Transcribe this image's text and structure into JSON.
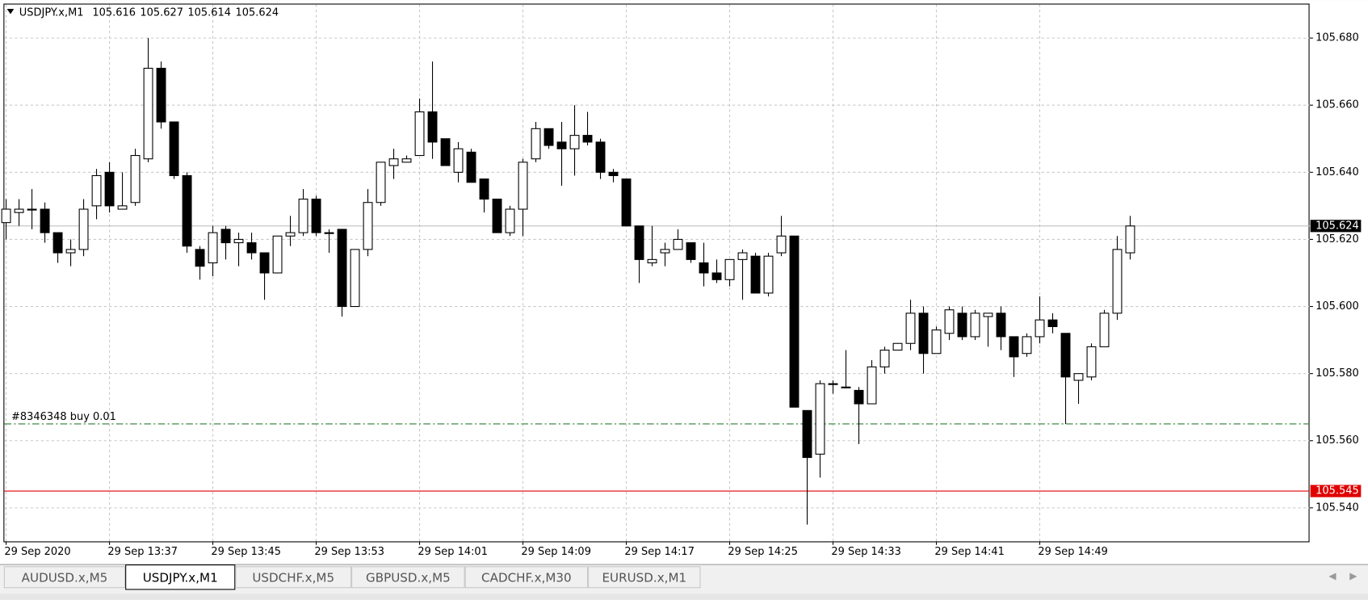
{
  "chart_data": {
    "type": "candlestick",
    "title": "USDJPY.x,M1",
    "categories": [
      "29 Sep 2020",
      null,
      null,
      null,
      null,
      null,
      null,
      null,
      "29 Sep 13:37",
      null,
      null,
      null,
      null,
      null,
      null,
      null,
      "29 Sep 13:45",
      null,
      null,
      null,
      null,
      null,
      null,
      null,
      "29 Sep 13:53",
      null,
      null,
      null,
      null,
      null,
      null,
      null,
      "29 Sep 14:01",
      null,
      null,
      null,
      null,
      null,
      null,
      null,
      "29 Sep 14:09",
      null,
      null,
      null,
      null,
      null,
      null,
      null,
      "29 Sep 14:17",
      null,
      null,
      null,
      null,
      null,
      null,
      null,
      "29 Sep 14:25",
      null,
      null,
      null,
      null,
      null,
      null,
      null,
      "29 Sep 14:33",
      null,
      null,
      null,
      null,
      null,
      null,
      null,
      "29 Sep 14:41",
      null,
      null,
      null,
      null,
      null,
      null,
      null,
      "29 Sep 14:49",
      null,
      null,
      null,
      null,
      null,
      null,
      null
    ],
    "open": [
      105.625,
      105.628,
      105.629,
      105.629,
      105.622,
      105.616,
      105.617,
      105.63,
      105.64,
      105.629,
      105.631,
      105.644,
      105.671,
      105.655,
      105.639,
      105.617,
      105.613,
      105.623,
      105.619,
      105.619,
      105.616,
      105.61,
      105.621,
      105.622,
      105.632,
      105.622,
      105.623,
      105.6,
      105.617,
      105.631,
      105.642,
      105.643,
      105.645,
      105.658,
      105.65,
      105.64,
      105.646,
      105.638,
      105.632,
      105.622,
      105.629,
      105.644,
      105.653,
      105.649,
      105.647,
      105.651,
      105.649,
      105.64,
      105.638,
      105.624,
      105.613,
      105.616,
      105.617,
      105.619,
      105.613,
      105.61,
      105.608,
      105.614,
      105.615,
      105.604,
      105.616,
      105.621,
      105.569,
      105.556,
      105.577,
      105.576,
      105.575,
      105.571,
      105.582,
      105.587,
      105.589,
      105.598,
      105.586,
      105.592,
      105.598,
      105.591,
      105.597,
      105.598,
      105.591,
      105.586,
      105.591,
      105.596,
      105.592,
      105.578,
      105.579,
      105.588,
      105.598,
      105.616
    ],
    "high": [
      105.632,
      105.632,
      105.635,
      105.631,
      105.622,
      105.62,
      105.632,
      105.641,
      105.643,
      105.64,
      105.647,
      105.68,
      105.673,
      105.655,
      105.64,
      105.618,
      105.624,
      105.624,
      105.622,
      105.622,
      105.616,
      105.621,
      105.627,
      105.635,
      105.633,
      105.623,
      105.623,
      105.617,
      105.635,
      105.643,
      105.647,
      105.645,
      105.662,
      105.673,
      105.65,
      105.649,
      105.647,
      105.638,
      105.632,
      105.63,
      105.644,
      105.655,
      105.653,
      105.655,
      105.66,
      105.658,
      105.65,
      105.641,
      105.638,
      105.624,
      105.624,
      105.619,
      105.623,
      105.619,
      105.619,
      105.614,
      105.614,
      105.617,
      105.616,
      105.616,
      105.627,
      105.621,
      105.569,
      105.578,
      105.578,
      105.587,
      105.576,
      105.584,
      105.588,
      105.589,
      105.602,
      105.6,
      105.594,
      105.6,
      105.6,
      105.599,
      105.598,
      105.6,
      105.591,
      105.592,
      105.603,
      105.598,
      105.592,
      105.58,
      105.589,
      105.599,
      105.621,
      105.627
    ],
    "low": [
      105.62,
      105.624,
      105.623,
      105.619,
      105.613,
      105.612,
      105.615,
      105.626,
      105.628,
      105.629,
      105.63,
      105.643,
      105.653,
      105.638,
      105.616,
      105.608,
      105.609,
      105.614,
      105.612,
      105.614,
      105.602,
      105.61,
      105.618,
      105.621,
      105.621,
      105.616,
      105.597,
      105.6,
      105.615,
      105.63,
      105.638,
      105.643,
      105.645,
      105.644,
      105.642,
      105.637,
      105.637,
      105.628,
      105.622,
      105.621,
      105.621,
      105.643,
      105.647,
      105.636,
      105.639,
      105.648,
      105.638,
      105.637,
      105.624,
      105.607,
      105.612,
      105.612,
      105.617,
      105.613,
      105.606,
      105.607,
      105.606,
      105.602,
      105.604,
      105.603,
      105.615,
      105.57,
      105.535,
      105.549,
      105.574,
      105.576,
      105.559,
      105.571,
      105.58,
      105.587,
      105.587,
      105.58,
      105.586,
      105.59,
      105.59,
      105.59,
      105.588,
      105.587,
      105.579,
      105.585,
      105.589,
      105.592,
      105.565,
      105.571,
      105.578,
      105.588,
      105.596,
      105.614
    ],
    "close": [
      105.629,
      105.629,
      105.629,
      105.622,
      105.616,
      105.617,
      105.629,
      105.639,
      105.63,
      105.63,
      105.645,
      105.671,
      105.655,
      105.639,
      105.618,
      105.612,
      105.622,
      105.619,
      105.62,
      105.616,
      105.61,
      105.621,
      105.622,
      105.632,
      105.622,
      105.622,
      105.6,
      105.617,
      105.631,
      105.643,
      105.644,
      105.644,
      105.658,
      105.649,
      105.642,
      105.647,
      105.637,
      105.632,
      105.622,
      105.629,
      105.643,
      105.653,
      105.648,
      105.647,
      105.651,
      105.649,
      105.64,
      105.639,
      105.624,
      105.614,
      105.614,
      105.617,
      105.62,
      105.614,
      105.61,
      105.608,
      105.614,
      105.616,
      105.604,
      105.615,
      105.621,
      105.57,
      105.555,
      105.577,
      105.577,
      105.576,
      105.571,
      105.582,
      105.587,
      105.589,
      105.598,
      105.586,
      105.593,
      105.599,
      105.591,
      105.598,
      105.598,
      105.591,
      105.585,
      105.591,
      105.596,
      105.594,
      105.579,
      105.58,
      105.588,
      105.598,
      105.617,
      105.624
    ],
    "ylim": [
      105.53,
      105.69
    ],
    "yticks": [
      {
        "value": 105.54,
        "label": "105.540"
      },
      {
        "value": 105.56,
        "label": "105.560"
      },
      {
        "value": 105.58,
        "label": "105.580"
      },
      {
        "value": 105.6,
        "label": "105.600"
      },
      {
        "value": 105.62,
        "label": "105.620"
      },
      {
        "value": 105.64,
        "label": "105.640"
      },
      {
        "value": 105.66,
        "label": "105.660"
      },
      {
        "value": 105.68,
        "label": "105.680"
      }
    ],
    "grid": true,
    "up_color": "#ffffff",
    "down_color": "#000000",
    "price_line": {
      "value": 105.624,
      "color": "#c0c0c0"
    },
    "level_line": {
      "value": 105.545,
      "color": "#e00000"
    },
    "order_line": {
      "label": "#8346348 buy 0.01",
      "value": 105.565,
      "color": "#2e7d32"
    }
  },
  "tabs": [
    "AUDUSD.x,M5",
    "USDJPY.x,M1",
    "USDCHF.x,M5",
    "GBPUSD.x,M5",
    "CADCHF.x,M30",
    "EURUSD.x,M1"
  ],
  "active_tab": 1
}
